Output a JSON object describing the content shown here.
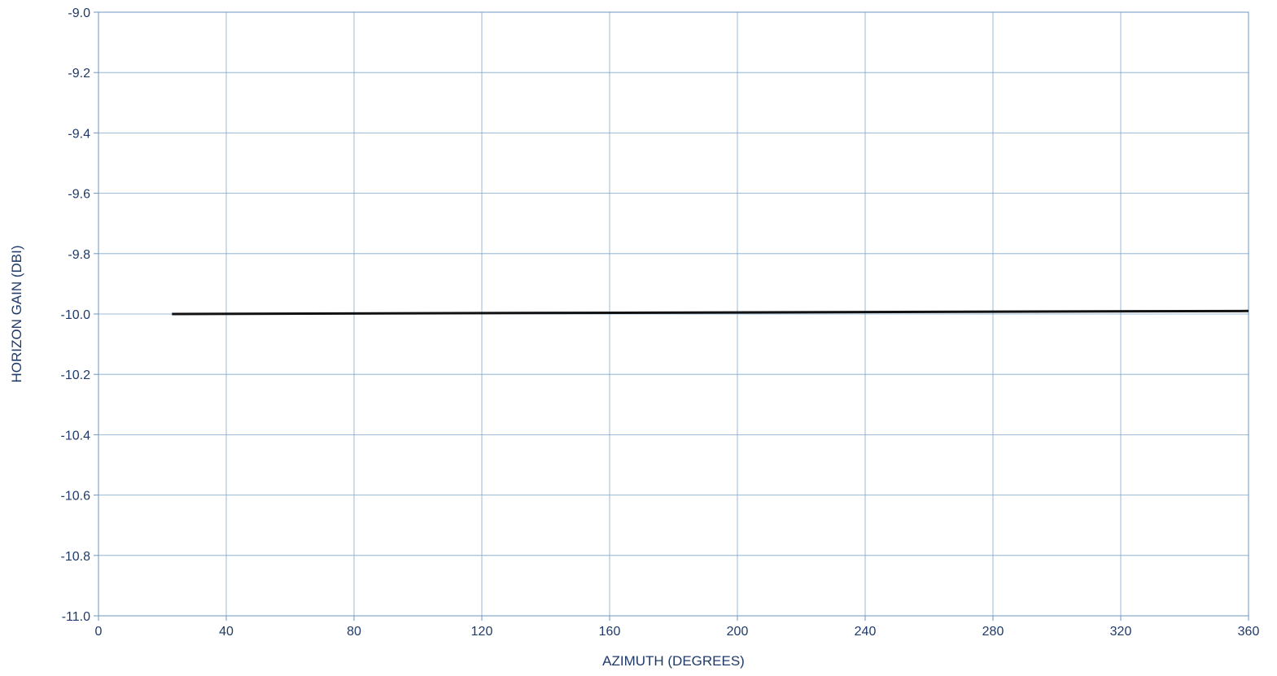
{
  "chart_data": {
    "type": "line",
    "title": "",
    "xlabel": "AZIMUTH (DEGREES)",
    "ylabel": "HORIZON GAIN (DBI)",
    "xlim": [
      0,
      360
    ],
    "ylim": [
      -11.0,
      -9.0
    ],
    "x_ticks": [
      0,
      40,
      80,
      120,
      160,
      200,
      240,
      280,
      320,
      360
    ],
    "x_tick_labels": [
      "0",
      "40",
      "80",
      "120",
      "160",
      "200",
      "240",
      "280",
      "320",
      "360"
    ],
    "y_ticks": [
      -9.0,
      -9.2,
      -9.4,
      -9.6,
      -9.8,
      -10.0,
      -10.2,
      -10.4,
      -10.6,
      -10.8,
      -11.0
    ],
    "y_tick_labels": [
      "-9.0",
      "-9.2",
      "-9.4",
      "-9.6",
      "-9.8",
      "-10.0",
      "-10.2",
      "-10.4",
      "-10.6",
      "-10.8",
      "-11.0"
    ],
    "grid": true,
    "series": [
      {
        "x": [
          23,
          360
        ],
        "y": [
          -10.0,
          -9.99
        ],
        "color": "#111111"
      }
    ]
  }
}
